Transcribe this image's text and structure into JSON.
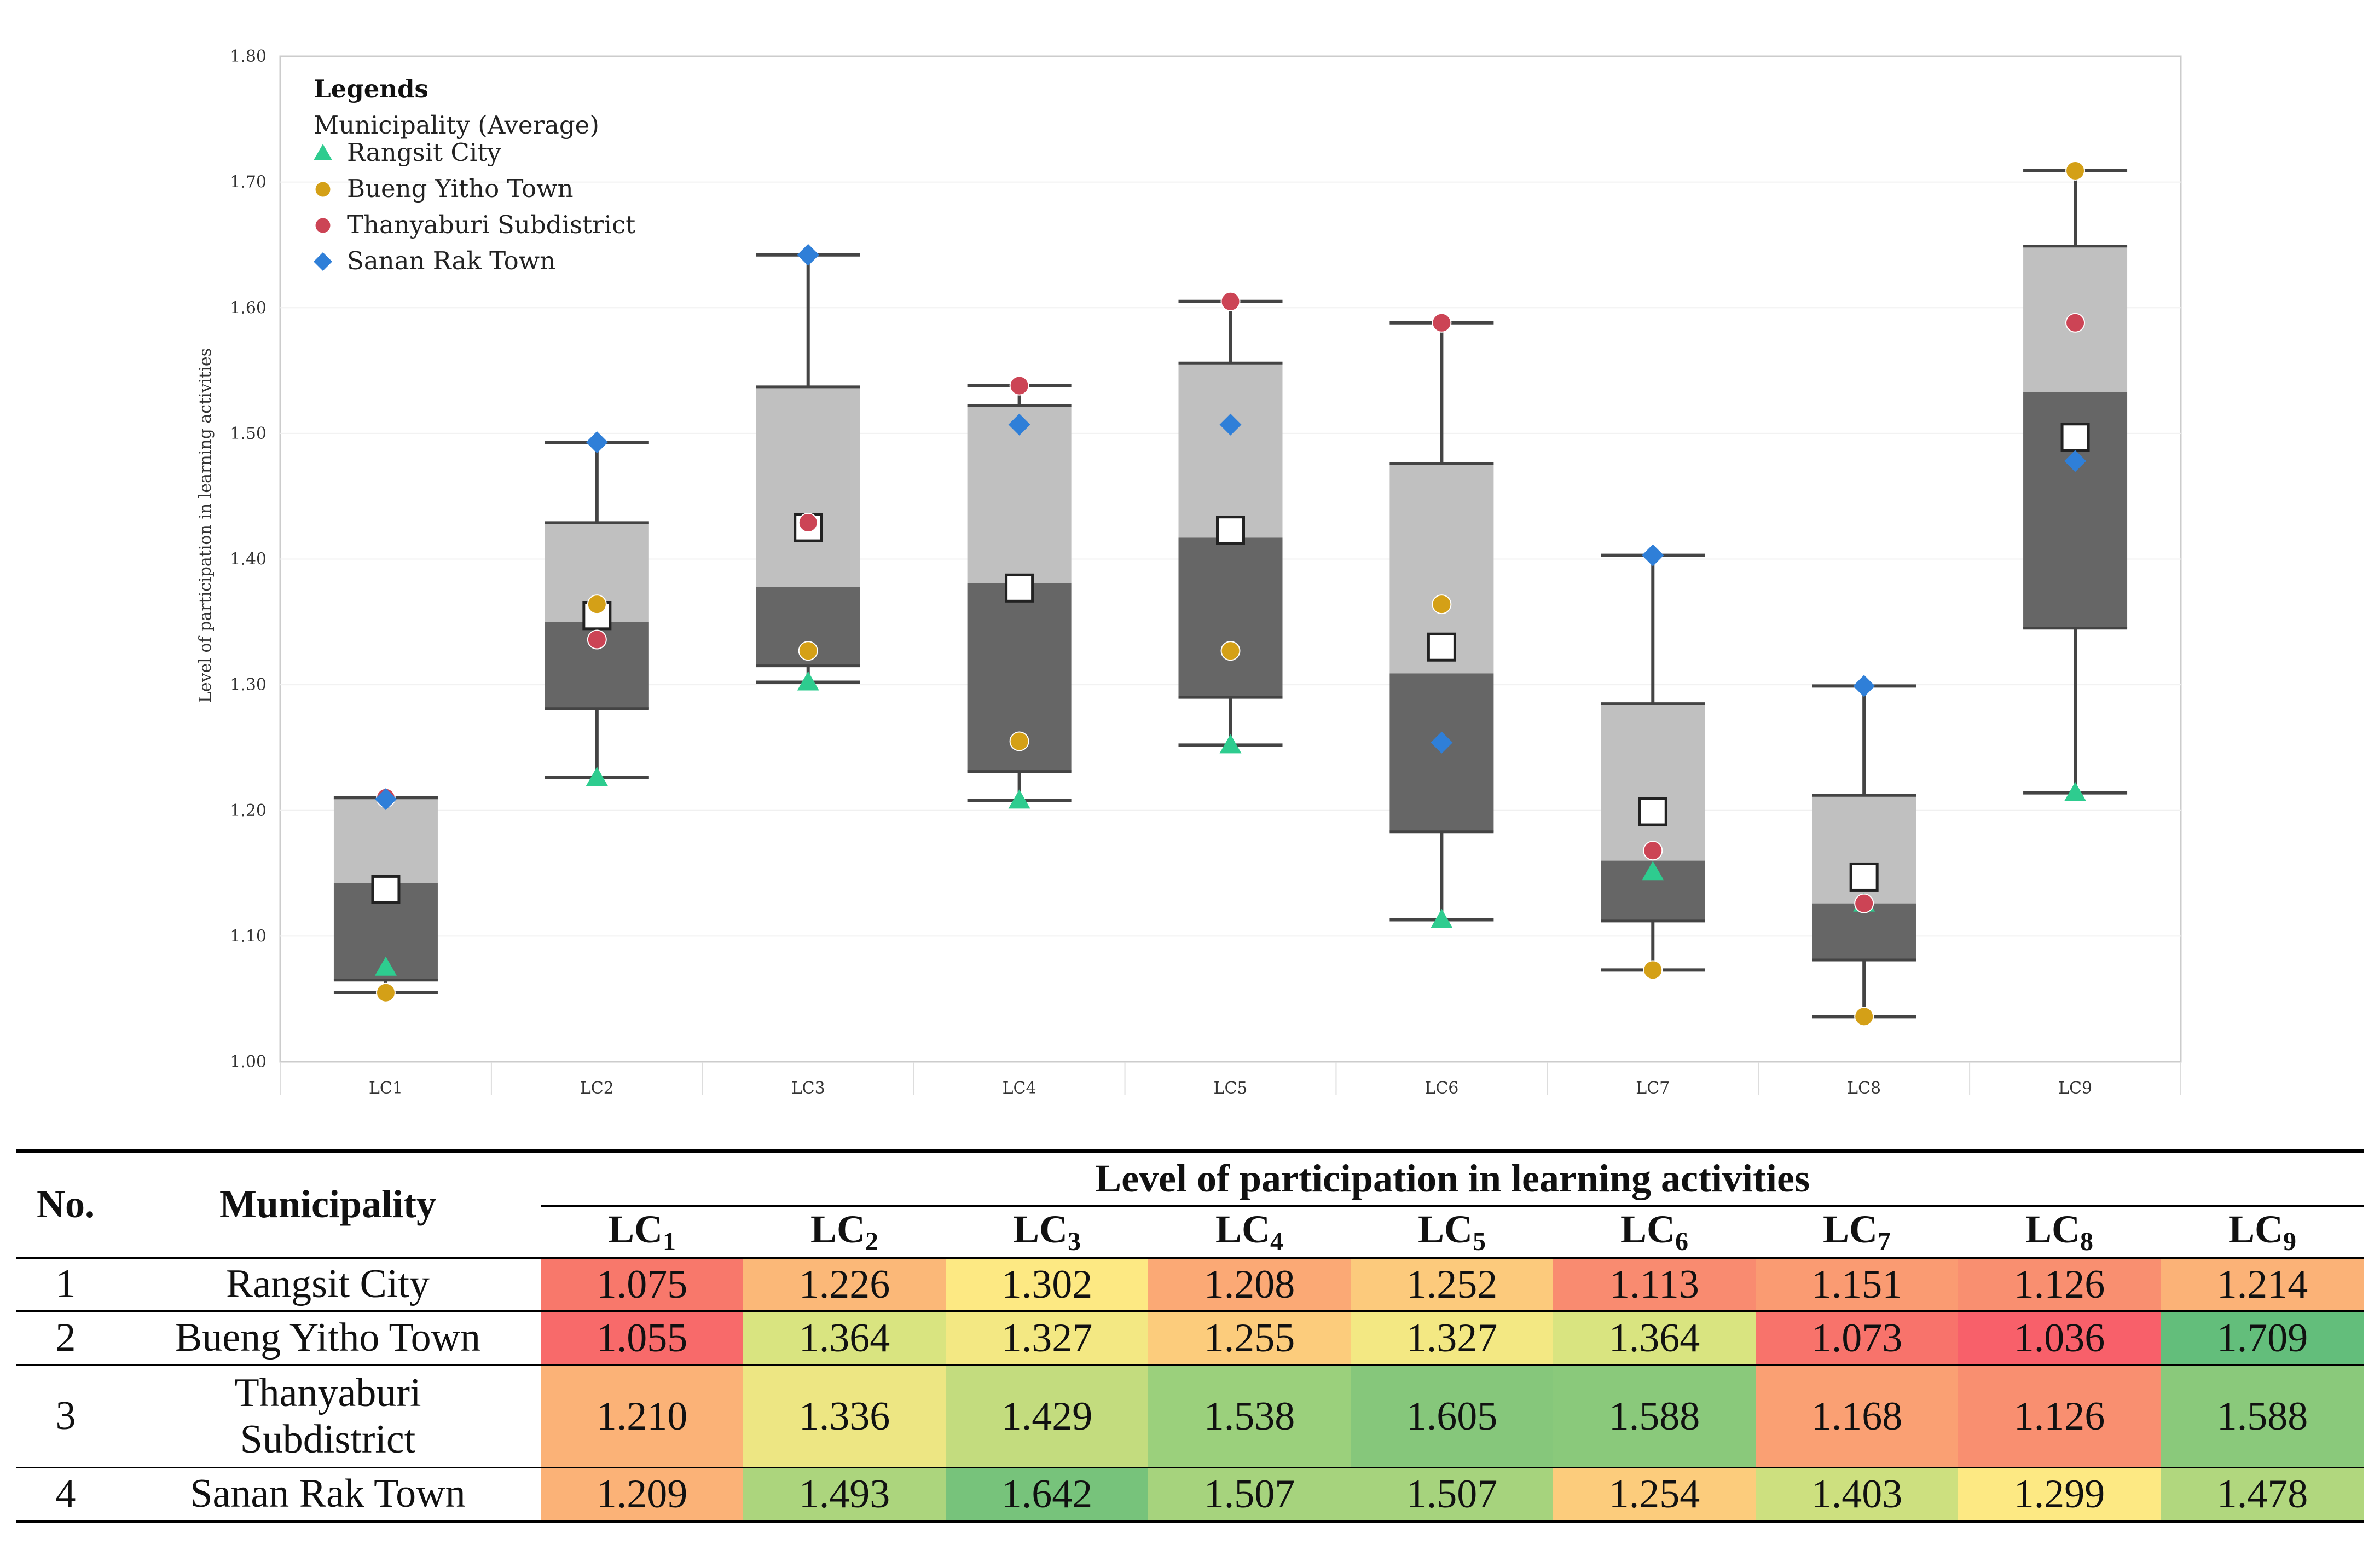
{
  "chart_data": {
    "type": "box",
    "title": "",
    "ylabel": "Level of participation in learning activities",
    "xlabel": "",
    "ylim": [
      1.0,
      1.8
    ],
    "yticks": [
      "1.00",
      "1.10",
      "1.20",
      "1.30",
      "1.40",
      "1.50",
      "1.60",
      "1.70",
      "1.80"
    ],
    "categories": [
      "LC1",
      "LC2",
      "LC3",
      "LC4",
      "LC5",
      "LC6",
      "LC7",
      "LC8",
      "LC9"
    ],
    "boxes": [
      {
        "min": 1.055,
        "q1": 1.065,
        "median": 1.142,
        "q3": 1.21,
        "max": 1.21,
        "mean": 1.137
      },
      {
        "min": 1.226,
        "q1": 1.281,
        "median": 1.35,
        "q3": 1.429,
        "max": 1.493,
        "mean": 1.355
      },
      {
        "min": 1.302,
        "q1": 1.315,
        "median": 1.378,
        "q3": 1.537,
        "max": 1.642,
        "mean": 1.425
      },
      {
        "min": 1.208,
        "q1": 1.231,
        "median": 1.381,
        "q3": 1.522,
        "max": 1.538,
        "mean": 1.377
      },
      {
        "min": 1.252,
        "q1": 1.29,
        "median": 1.417,
        "q3": 1.556,
        "max": 1.605,
        "mean": 1.423
      },
      {
        "min": 1.113,
        "q1": 1.183,
        "median": 1.309,
        "q3": 1.476,
        "max": 1.588,
        "mean": 1.33
      },
      {
        "min": 1.073,
        "q1": 1.112,
        "median": 1.16,
        "q3": 1.285,
        "max": 1.403,
        "mean": 1.199
      },
      {
        "min": 1.036,
        "q1": 1.081,
        "median": 1.126,
        "q3": 1.212,
        "max": 1.299,
        "mean": 1.147
      },
      {
        "min": 1.214,
        "q1": 1.345,
        "median": 1.533,
        "q3": 1.649,
        "max": 1.709,
        "mean": 1.497
      }
    ],
    "legend": {
      "title": "Legends",
      "subtitle": "Municipality (Average)",
      "placement": "top-left"
    },
    "series": [
      {
        "name": "Rangsit City",
        "marker": "triangle",
        "color": "#2ecc8f",
        "values": [
          1.075,
          1.226,
          1.302,
          1.208,
          1.252,
          1.113,
          1.151,
          1.126,
          1.214
        ]
      },
      {
        "name": "Bueng Yitho Town",
        "marker": "circle",
        "color": "#d4a017",
        "values": [
          1.055,
          1.364,
          1.327,
          1.255,
          1.327,
          1.364,
          1.073,
          1.036,
          1.709
        ]
      },
      {
        "name": "Thanyaburi Subdistrict",
        "marker": "circle",
        "color": "#cc4455",
        "values": [
          1.21,
          1.336,
          1.429,
          1.538,
          1.605,
          1.588,
          1.168,
          1.126,
          1.588
        ]
      },
      {
        "name": "Sanan Rak Town",
        "marker": "diamond",
        "color": "#2f7fd8",
        "values": [
          1.209,
          1.493,
          1.642,
          1.507,
          1.507,
          1.254,
          1.403,
          1.299,
          1.478
        ]
      }
    ],
    "colors": {
      "lower_box": "#666666",
      "upper_box": "#c0c0c0",
      "whisker": "#444444",
      "frame": "#cccccc"
    }
  },
  "table": {
    "col_no": "No.",
    "col_municipality": "Municipality",
    "group_header": "Level of participation in learning activities",
    "lc_columns": [
      {
        "base": "LC",
        "sub": "1"
      },
      {
        "base": "LC",
        "sub": "2"
      },
      {
        "base": "LC",
        "sub": "3"
      },
      {
        "base": "LC",
        "sub": "4"
      },
      {
        "base": "LC",
        "sub": "5"
      },
      {
        "base": "LC",
        "sub": "6"
      },
      {
        "base": "LC",
        "sub": "7"
      },
      {
        "base": "LC",
        "sub": "8"
      },
      {
        "base": "LC",
        "sub": "9"
      }
    ],
    "rows": [
      {
        "no": "1",
        "name": "Rangsit City",
        "cells": [
          {
            "v": "1.075",
            "c": "#f8786b"
          },
          {
            "v": "1.226",
            "c": "#fbb878"
          },
          {
            "v": "1.302",
            "c": "#fde983"
          },
          {
            "v": "1.208",
            "c": "#fba975"
          },
          {
            "v": "1.252",
            "c": "#fcca7c"
          },
          {
            "v": "1.113",
            "c": "#f98b70"
          },
          {
            "v": "1.151",
            "c": "#fa9b72"
          },
          {
            "v": "1.126",
            "c": "#f98f70"
          },
          {
            "v": "1.214",
            "c": "#fbb277"
          }
        ]
      },
      {
        "no": "2",
        "name": "Bueng Yitho Town",
        "cells": [
          {
            "v": "1.055",
            "c": "#f86a6a"
          },
          {
            "v": "1.364",
            "c": "#d9e480"
          },
          {
            "v": "1.327",
            "c": "#f3e883"
          },
          {
            "v": "1.255",
            "c": "#fccc7c"
          },
          {
            "v": "1.327",
            "c": "#f3e883"
          },
          {
            "v": "1.364",
            "c": "#d9e480"
          },
          {
            "v": "1.073",
            "c": "#f8736b"
          },
          {
            "v": "1.036",
            "c": "#f8606a"
          },
          {
            "v": "1.709",
            "c": "#63be7b"
          }
        ]
      },
      {
        "no": "3",
        "name_line1": "Thanyaburi",
        "name_line2": "Subdistrict",
        "cells": [
          {
            "v": "1.210",
            "c": "#fbb277"
          },
          {
            "v": "1.336",
            "c": "#ede683"
          },
          {
            "v": "1.429",
            "c": "#c3dc7e"
          },
          {
            "v": "1.538",
            "c": "#9bd07c"
          },
          {
            "v": "1.605",
            "c": "#86c77b"
          },
          {
            "v": "1.588",
            "c": "#8ac97b"
          },
          {
            "v": "1.168",
            "c": "#faa073"
          },
          {
            "v": "1.126",
            "c": "#f98f70"
          },
          {
            "v": "1.588",
            "c": "#8ac97b"
          }
        ]
      },
      {
        "no": "4",
        "name": "Sanan Rak Town",
        "cells": [
          {
            "v": "1.209",
            "c": "#fbb277"
          },
          {
            "v": "1.493",
            "c": "#acd57d"
          },
          {
            "v": "1.642",
            "c": "#77c37b"
          },
          {
            "v": "1.507",
            "c": "#a6d37d"
          },
          {
            "v": "1.507",
            "c": "#a6d37d"
          },
          {
            "v": "1.254",
            "c": "#fccc7c"
          },
          {
            "v": "1.403",
            "c": "#cde07f"
          },
          {
            "v": "1.299",
            "c": "#fde983"
          },
          {
            "v": "1.478",
            "c": "#b1d77e"
          }
        ]
      }
    ]
  }
}
